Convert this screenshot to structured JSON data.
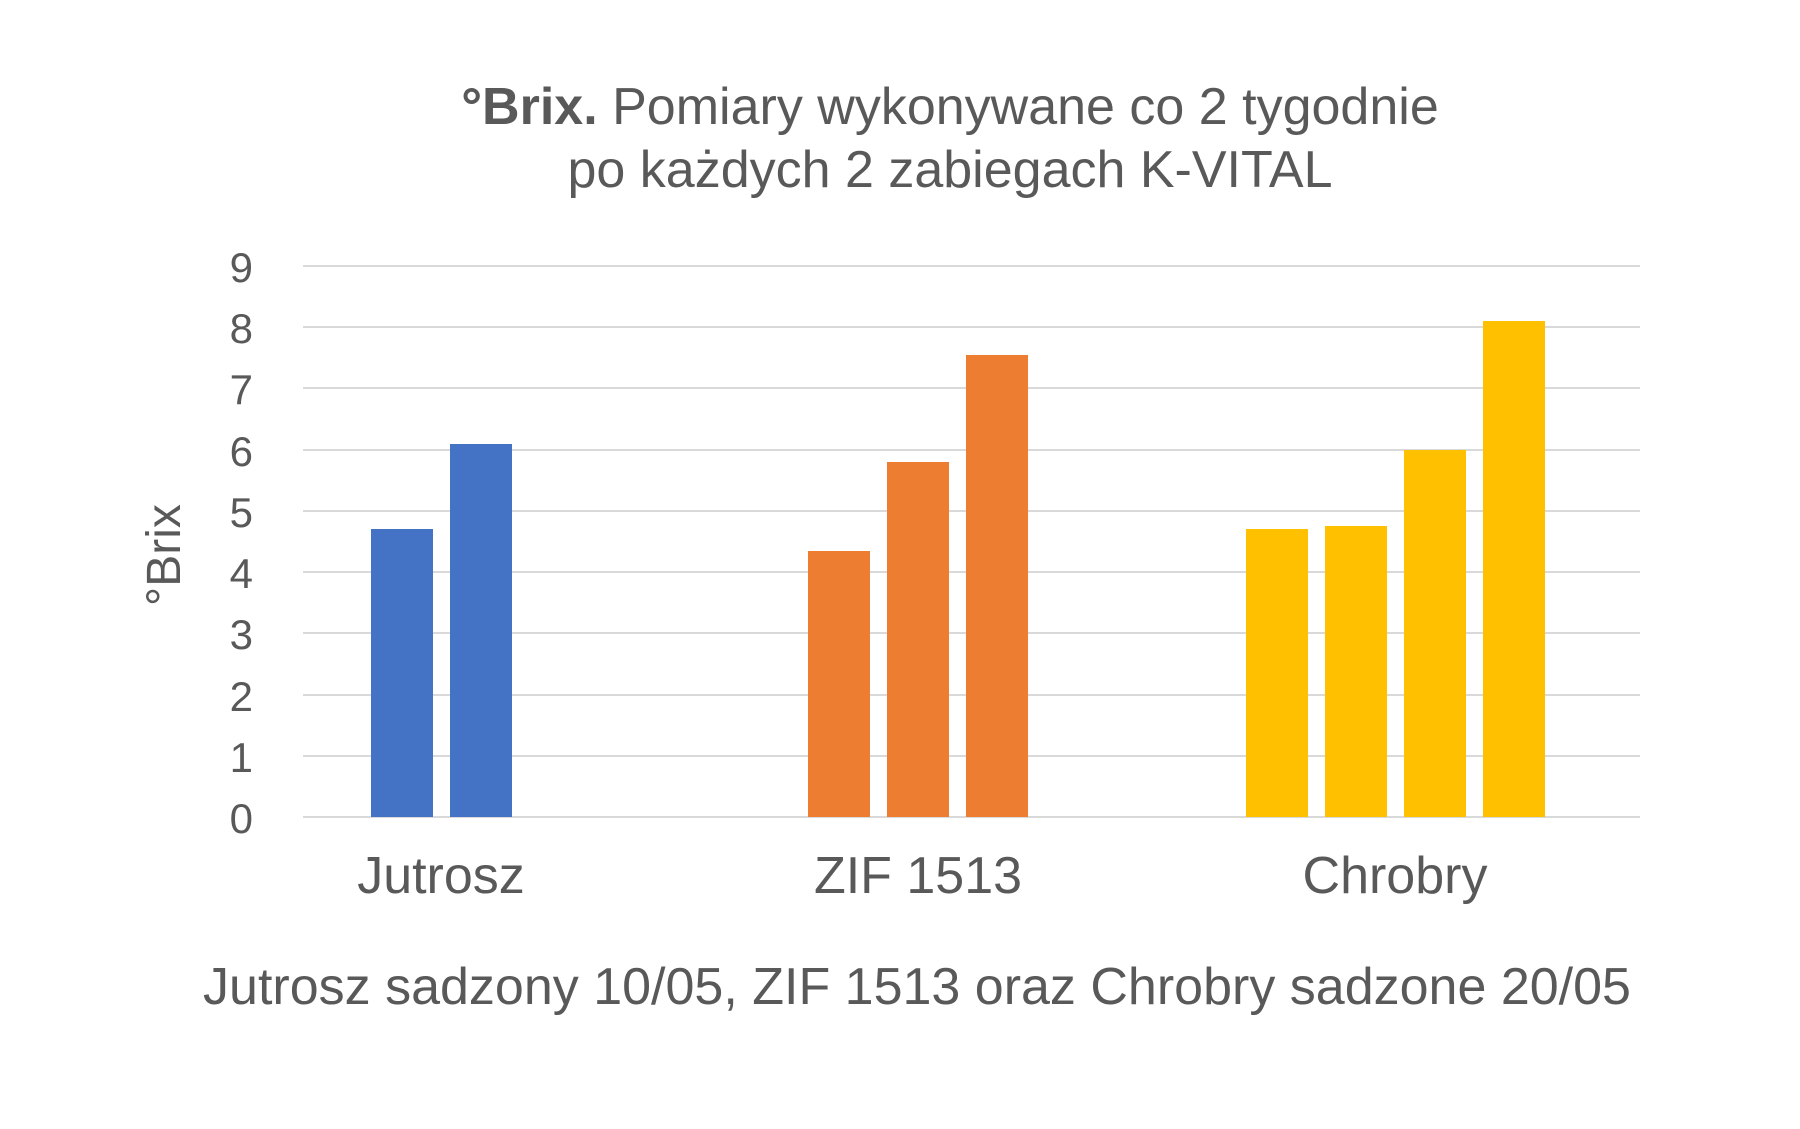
{
  "chart_data": {
    "type": "bar",
    "title_bold": "°Brix.",
    "title_rest": " Pomiary wykonywane co 2 tygodnie",
    "title_line2": "po każdych 2 zabiegach K-VITAL",
    "ylabel": "°Brix",
    "caption": "Jutrosz sadzony 10/05, ZIF 1513 oraz Chrobry sadzone 20/05",
    "ylim": [
      0,
      9
    ],
    "yticks": [
      0,
      1,
      2,
      3,
      4,
      5,
      6,
      7,
      8,
      9
    ],
    "grid": true,
    "legend": false,
    "categories": [
      "Jutrosz",
      "ZIF 1513",
      "Chrobry"
    ],
    "groups": [
      {
        "label": "Jutrosz",
        "color": "#4472C4",
        "values": [
          4.7,
          6.1
        ]
      },
      {
        "label": "ZIF 1513",
        "color": "#ED7D31",
        "values": [
          4.35,
          5.8,
          7.55
        ]
      },
      {
        "label": "Chrobry",
        "color": "#FFC000",
        "values": [
          4.7,
          4.75,
          6.0,
          8.1
        ]
      }
    ],
    "colors": {
      "blue": "#4472C4",
      "orange": "#ED7D31",
      "yellow": "#FFC000",
      "gridline": "#D9D9D9",
      "text": "#595959"
    }
  }
}
